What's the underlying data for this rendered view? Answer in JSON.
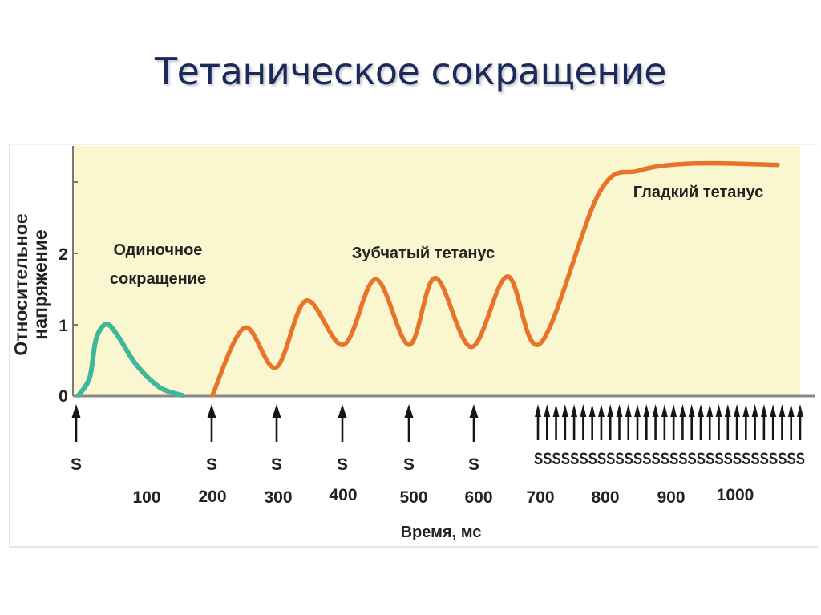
{
  "slide": {
    "title": "Тетаническое сокращение"
  },
  "chart_data": {
    "type": "line",
    "title": "Тетаническое сокращение",
    "xlabel": "Время, мс",
    "ylabel": "Относительное напряжение",
    "xlim": [
      0,
      1100
    ],
    "ylim": [
      0,
      3
    ],
    "x_ticks": [
      "100",
      "200",
      "300",
      "400",
      "500",
      "600",
      "700",
      "800",
      "900",
      "1000"
    ],
    "y_ticks": [
      "0",
      "1",
      "2"
    ],
    "grid": false,
    "background": "#faf6cf",
    "annotations": {
      "single": "Одиночное сокращение",
      "single_line1": "Одиночное",
      "single_line2": "сокращение",
      "serrated": "Зубчатый тетанус",
      "smooth": "Гладкий тетанус"
    },
    "stimulus_label": "S",
    "single_stimuli_ms": [
      0,
      200,
      300,
      400,
      500,
      600
    ],
    "rapid_stimuli": {
      "count": 30,
      "start_ms": 690,
      "end_ms": 1090,
      "label": "SSSSSSSSSSSSSSSSSSSSSSSSSSSSSS"
    },
    "series": [
      {
        "name": "Одиночное сокращение",
        "color": "#3fb79b",
        "x": [
          0,
          17,
          27,
          43,
          61,
          88,
          124,
          158
        ],
        "y": [
          0,
          0.25,
          0.8,
          1.0,
          0.82,
          0.43,
          0.11,
          0
        ]
      },
      {
        "name": "Зубчатый тетанус / Гладкий тетанус",
        "color": "#e8732a",
        "x": [
          204,
          253,
          301,
          347,
          404,
          453,
          504,
          544,
          599,
          654,
          704,
          794,
          855,
          940,
          1066
        ],
        "y": [
          0,
          0.95,
          0.39,
          1.33,
          0.71,
          1.63,
          0.71,
          1.65,
          0.68,
          1.67,
          0.73,
          2.85,
          3.16,
          3.26,
          3.24
        ]
      }
    ]
  }
}
